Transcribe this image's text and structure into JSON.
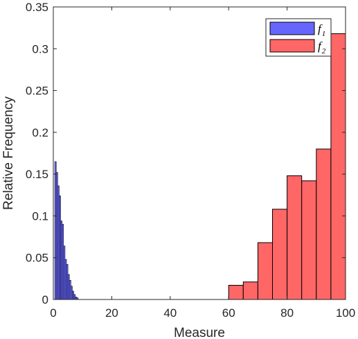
{
  "chart_data": {
    "type": "bar",
    "title": "",
    "xlabel": "Measure",
    "ylabel": "Relative Frequency",
    "xlim": [
      0,
      100
    ],
    "ylim": [
      0,
      0.35
    ],
    "xticks": [
      0,
      20,
      40,
      60,
      80,
      100
    ],
    "yticks": [
      0,
      0.05,
      0.1,
      0.15,
      0.2,
      0.25,
      0.3,
      0.35
    ],
    "xtick_labels": [
      "0",
      "20",
      "40",
      "60",
      "80",
      "100"
    ],
    "ytick_labels": [
      "0",
      "0.05",
      "0.1",
      "0.15",
      "0.2",
      "0.25",
      "0.3",
      "0.35"
    ],
    "grid": false,
    "legend_position": "top-right",
    "series": [
      {
        "name": "f1",
        "name_base": "f",
        "name_sub": "1",
        "color": "#6666FF",
        "bin_width": 0.5,
        "bins": [
          {
            "x0": 0.5,
            "x1": 1.0,
            "value": 0.165
          },
          {
            "x0": 1.0,
            "x1": 1.5,
            "value": 0.152
          },
          {
            "x0": 1.5,
            "x1": 2.0,
            "value": 0.136
          },
          {
            "x0": 2.0,
            "x1": 2.5,
            "value": 0.124
          },
          {
            "x0": 2.5,
            "x1": 3.0,
            "value": 0.094
          },
          {
            "x0": 3.0,
            "x1": 3.5,
            "value": 0.09
          },
          {
            "x0": 3.5,
            "x1": 4.0,
            "value": 0.064
          },
          {
            "x0": 4.0,
            "x1": 4.5,
            "value": 0.048
          },
          {
            "x0": 4.5,
            "x1": 5.0,
            "value": 0.042
          },
          {
            "x0": 5.0,
            "x1": 5.5,
            "value": 0.03
          },
          {
            "x0": 5.5,
            "x1": 6.0,
            "value": 0.023
          },
          {
            "x0": 6.0,
            "x1": 6.5,
            "value": 0.016
          },
          {
            "x0": 6.5,
            "x1": 7.0,
            "value": 0.01
          },
          {
            "x0": 7.0,
            "x1": 7.5,
            "value": 0.006
          },
          {
            "x0": 7.5,
            "x1": 8.0,
            "value": 0.003
          },
          {
            "x0": 8.0,
            "x1": 8.5,
            "value": 0.002
          }
        ]
      },
      {
        "name": "f2",
        "name_base": "f",
        "name_sub": "2",
        "color": "#FF6666",
        "bin_width": 5,
        "bins": [
          {
            "x0": 60,
            "x1": 65,
            "value": 0.017
          },
          {
            "x0": 65,
            "x1": 70,
            "value": 0.021
          },
          {
            "x0": 70,
            "x1": 75,
            "value": 0.068
          },
          {
            "x0": 75,
            "x1": 80,
            "value": 0.108
          },
          {
            "x0": 80,
            "x1": 85,
            "value": 0.148
          },
          {
            "x0": 85,
            "x1": 90,
            "value": 0.142
          },
          {
            "x0": 90,
            "x1": 95,
            "value": 0.18
          },
          {
            "x0": 95,
            "x1": 100,
            "value": 0.318
          }
        ]
      }
    ]
  }
}
